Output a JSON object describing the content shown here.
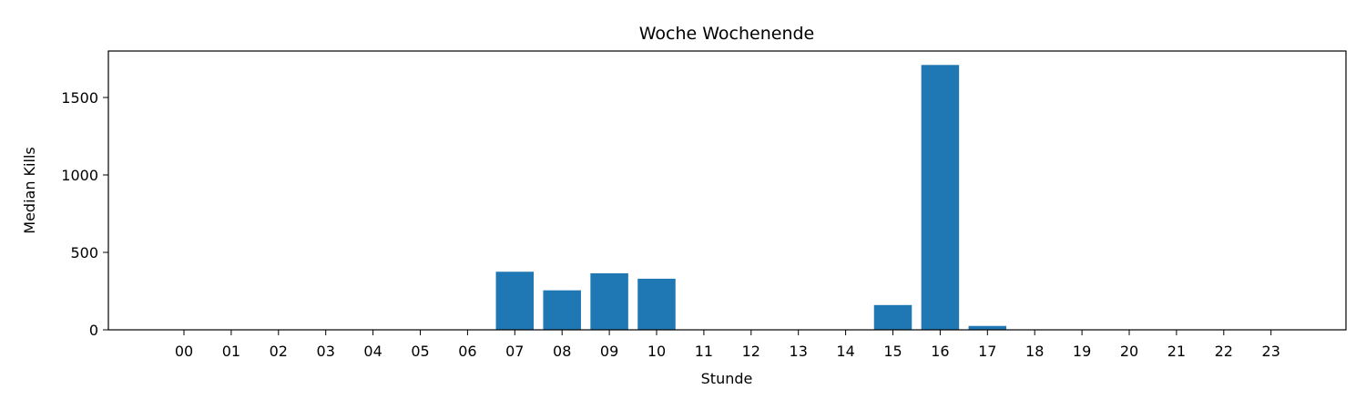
{
  "chart_data": {
    "type": "bar",
    "title": "Woche Wochenende",
    "xlabel": "Stunde",
    "ylabel": "Median Kills",
    "categories": [
      "00",
      "01",
      "02",
      "03",
      "04",
      "05",
      "06",
      "07",
      "08",
      "09",
      "10",
      "11",
      "12",
      "13",
      "14",
      "15",
      "16",
      "17",
      "18",
      "19",
      "20",
      "21",
      "22",
      "23"
    ],
    "values": [
      0,
      0,
      0,
      0,
      0,
      0,
      0,
      375,
      255,
      365,
      330,
      0,
      0,
      0,
      0,
      160,
      1710,
      25,
      0,
      0,
      0,
      0,
      0,
      0
    ],
    "ylim": [
      0,
      1800
    ],
    "yticks": [
      0,
      500,
      1000,
      1500
    ],
    "grid": false,
    "bar_color": "#1f77b4"
  }
}
